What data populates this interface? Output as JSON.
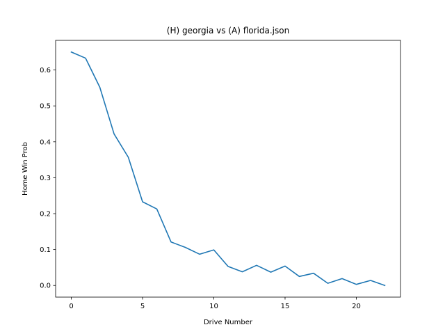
{
  "chart_data": {
    "type": "line",
    "title": "(H) georgia vs (A) florida.json",
    "xlabel": "Drive Number",
    "ylabel": "Home Win Prob",
    "xlim": [
      -1.1,
      23.1
    ],
    "ylim": [
      -0.0325,
      0.6825
    ],
    "x_ticks": [
      0,
      5,
      10,
      15,
      20
    ],
    "y_ticks": [
      0.0,
      0.1,
      0.2,
      0.3,
      0.4,
      0.5,
      0.6
    ],
    "y_tick_labels": [
      "0.0",
      "0.1",
      "0.2",
      "0.3",
      "0.4",
      "0.5",
      "0.6"
    ],
    "grid": false,
    "series": [
      {
        "color": "#1f77b4",
        "x": [
          0,
          1,
          2,
          3,
          4,
          5,
          6,
          7,
          8,
          9,
          10,
          11,
          12,
          13,
          14,
          15,
          16,
          17,
          18,
          19,
          20,
          21,
          22
        ],
        "values": [
          0.65,
          0.633,
          0.552,
          0.422,
          0.357,
          0.233,
          0.213,
          0.121,
          0.106,
          0.087,
          0.099,
          0.053,
          0.038,
          0.056,
          0.037,
          0.054,
          0.025,
          0.034,
          0.006,
          0.019,
          0.003,
          0.014,
          0.0
        ]
      }
    ]
  }
}
